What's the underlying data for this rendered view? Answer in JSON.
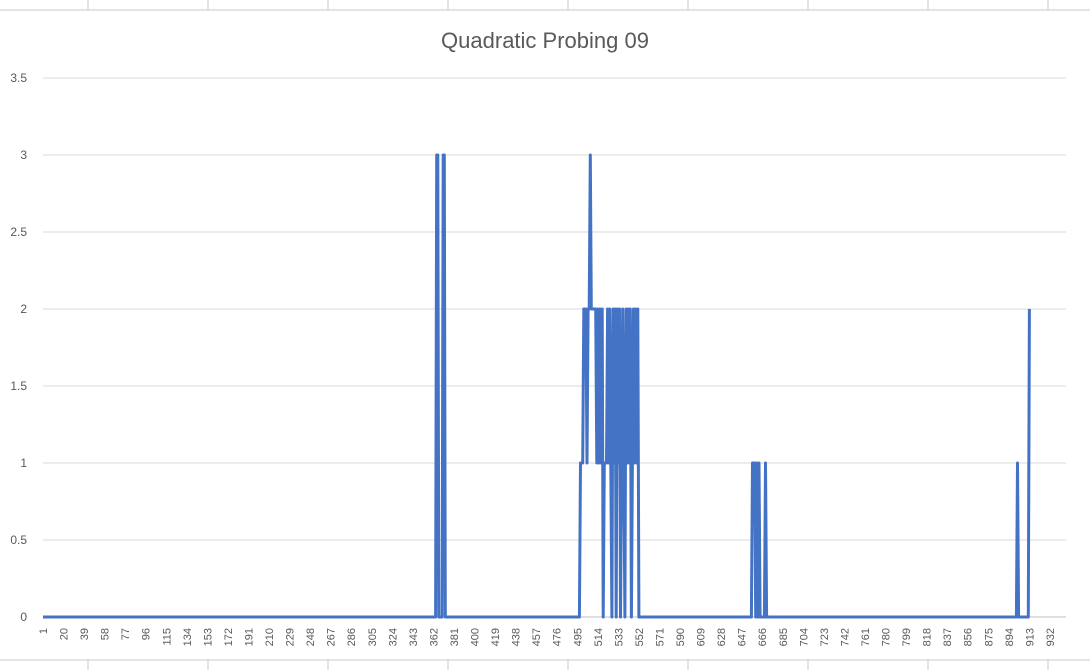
{
  "colors": {
    "series": "#4472C4",
    "grid": "#d9d9d9",
    "text": "#595959",
    "sheet_lines": "#c8c8c8"
  },
  "chart_data": {
    "type": "line",
    "title": "Quadratic Probing 09",
    "xlabel": "",
    "ylabel": "",
    "ylim": [
      0,
      3.5
    ],
    "y_ticks": [
      "0",
      "0.5",
      "1",
      "1.5",
      "2",
      "2.5",
      "3",
      "3.5"
    ],
    "x_range": [
      1,
      933
    ],
    "x_ticks": [
      1,
      20,
      39,
      58,
      77,
      96,
      115,
      134,
      153,
      172,
      191,
      210,
      229,
      248,
      267,
      286,
      305,
      324,
      343,
      362,
      381,
      400,
      419,
      438,
      457,
      476,
      495,
      514,
      533,
      552,
      571,
      590,
      609,
      628,
      647,
      666,
      685,
      704,
      723,
      742,
      761,
      780,
      799,
      818,
      837,
      856,
      875,
      894,
      913,
      932
    ],
    "grid": true,
    "legend": "none",
    "series": [
      {
        "points": [
          [
            1,
            0
          ],
          [
            364,
            0
          ],
          [
            365,
            3
          ],
          [
            366,
            3
          ],
          [
            367,
            0
          ],
          [
            370,
            0
          ],
          [
            371,
            3
          ],
          [
            372,
            3
          ],
          [
            373,
            0
          ],
          [
            376,
            0
          ],
          [
            497,
            0
          ],
          [
            498,
            1
          ],
          [
            500,
            1
          ],
          [
            501,
            2
          ],
          [
            503,
            2
          ],
          [
            504,
            1
          ],
          [
            505,
            2
          ],
          [
            506,
            2
          ],
          [
            507,
            3
          ],
          [
            508,
            2
          ],
          [
            512,
            2
          ],
          [
            513,
            1
          ],
          [
            514,
            2
          ],
          [
            515,
            1
          ],
          [
            516,
            2
          ],
          [
            517,
            1
          ],
          [
            518,
            2
          ],
          [
            519,
            0
          ],
          [
            520,
            1
          ],
          [
            522,
            1
          ],
          [
            523,
            2
          ],
          [
            524,
            1
          ],
          [
            525,
            2
          ],
          [
            526,
            1
          ],
          [
            527,
            0
          ],
          [
            528,
            2
          ],
          [
            529,
            1
          ],
          [
            530,
            2
          ],
          [
            531,
            0
          ],
          [
            532,
            2
          ],
          [
            533,
            1
          ],
          [
            534,
            2
          ],
          [
            535,
            0
          ],
          [
            536,
            1
          ],
          [
            537,
            2
          ],
          [
            538,
            1
          ],
          [
            539,
            0
          ],
          [
            540,
            2
          ],
          [
            541,
            1
          ],
          [
            542,
            2
          ],
          [
            543,
            1
          ],
          [
            544,
            2
          ],
          [
            545,
            0
          ],
          [
            546,
            1
          ],
          [
            547,
            2
          ],
          [
            548,
            1
          ],
          [
            549,
            2
          ],
          [
            550,
            1
          ],
          [
            551,
            2
          ],
          [
            552,
            0
          ],
          [
            656,
            0
          ],
          [
            657,
            1
          ],
          [
            659,
            1
          ],
          [
            660,
            0
          ],
          [
            661,
            1
          ],
          [
            662,
            0
          ],
          [
            663,
            1
          ],
          [
            664,
            0
          ],
          [
            668,
            0
          ],
          [
            669,
            1
          ],
          [
            670,
            0
          ],
          [
            901,
            0
          ],
          [
            902,
            1
          ],
          [
            903,
            0
          ],
          [
            912,
            0
          ],
          [
            913,
            2
          ]
        ]
      }
    ]
  }
}
